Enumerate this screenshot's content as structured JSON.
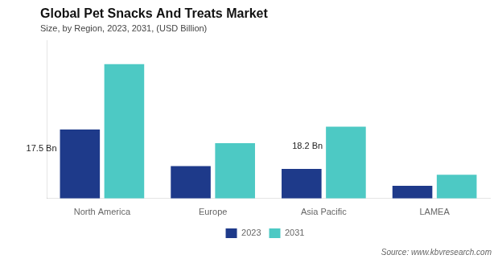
{
  "chart_data": {
    "type": "bar",
    "title": "Global Pet Snacks And Treats Market",
    "subtitle": "Size, by Region, 2023, 2031, (USD Billion)",
    "source": "Source: www.kbvresearch.com",
    "categories": [
      "North America",
      "Europe",
      "Asia Pacific",
      "LAMEA"
    ],
    "series": [
      {
        "name": "2023",
        "color": "#1e3a8a",
        "values": [
          17.5,
          8.2,
          7.5,
          3.2
        ]
      },
      {
        "name": "2031",
        "color": "#4dc9c4",
        "values": [
          34.0,
          14.0,
          18.2,
          6.0
        ]
      }
    ],
    "annotations": [
      {
        "text": "17.5 Bn",
        "series": "2023",
        "category": "North America"
      },
      {
        "text": "18.2 Bn",
        "series": "2031",
        "category": "Asia Pacific"
      }
    ],
    "ylim": [
      0,
      40
    ],
    "tick_labels": "x",
    "grid": false,
    "legend": "bottom",
    "data_labels": false
  }
}
